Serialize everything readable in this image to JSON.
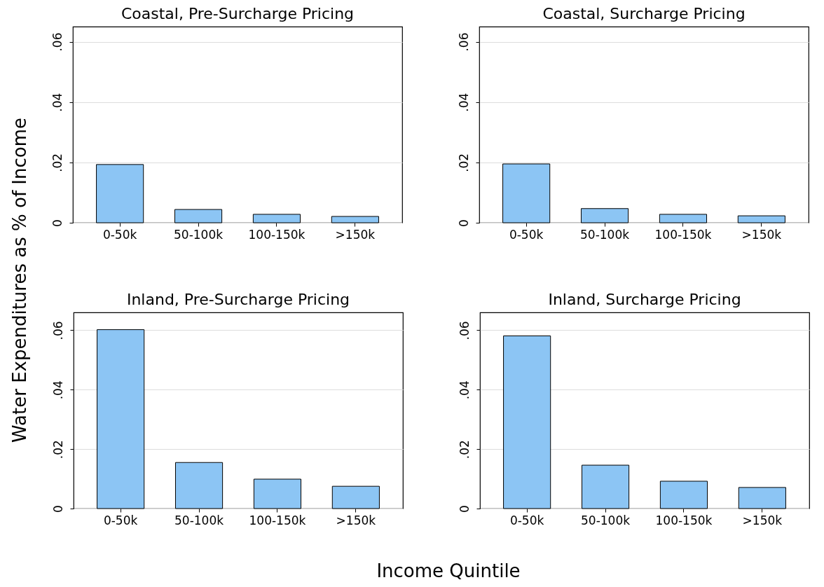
{
  "chart_data": [
    {
      "type": "bar",
      "title": "Coastal, Pre-Surcharge Pricing",
      "ylabel": "Water Expenditures as % of Income",
      "xlabel": "Income Quintile",
      "categories": [
        "0-50k",
        "50-100k",
        "100-150k",
        ">150k"
      ],
      "values": [
        0.0193,
        0.0044,
        0.0028,
        0.0021
      ],
      "color": "#8cc5f4",
      "ylim": [
        0,
        0.065
      ],
      "yticks": [
        {
          "value": 0,
          "label": "0"
        },
        {
          "value": 0.02,
          "label": ".02"
        },
        {
          "value": 0.04,
          "label": ".04"
        },
        {
          "value": 0.06,
          "label": ".06"
        }
      ],
      "grid": "y"
    },
    {
      "type": "bar",
      "title": "Coastal, Surcharge Pricing",
      "categories": [
        "0-50k",
        "50-100k",
        "100-150k",
        ">150k"
      ],
      "values": [
        0.0195,
        0.0047,
        0.0028,
        0.0023
      ],
      "color": "#8cc5f4",
      "ylim": [
        0,
        0.065
      ],
      "yticks": [
        {
          "value": 0,
          "label": "0"
        },
        {
          "value": 0.02,
          "label": ".02"
        },
        {
          "value": 0.04,
          "label": ".04"
        },
        {
          "value": 0.06,
          "label": ".06"
        }
      ],
      "grid": "y"
    },
    {
      "type": "bar",
      "title": "Inland, Pre-Surcharge Pricing",
      "categories": [
        "0-50k",
        "50-100k",
        "100-150k",
        ">150k"
      ],
      "values": [
        0.0602,
        0.0155,
        0.0099,
        0.0075
      ],
      "color": "#8cc5f4",
      "ylim": [
        0,
        0.066
      ],
      "yticks": [
        {
          "value": 0,
          "label": "0"
        },
        {
          "value": 0.02,
          "label": ".02"
        },
        {
          "value": 0.04,
          "label": ".04"
        },
        {
          "value": 0.06,
          "label": ".06"
        }
      ],
      "grid": "y"
    },
    {
      "type": "bar",
      "title": "Inland, Surcharge Pricing",
      "categories": [
        "0-50k",
        "50-100k",
        "100-150k",
        ">150k"
      ],
      "values": [
        0.0581,
        0.0146,
        0.0092,
        0.0071
      ],
      "color": "#8cc5f4",
      "ylim": [
        0,
        0.066
      ],
      "yticks": [
        {
          "value": 0,
          "label": "0"
        },
        {
          "value": 0.02,
          "label": ".02"
        },
        {
          "value": 0.04,
          "label": ".04"
        },
        {
          "value": 0.06,
          "label": ".06"
        }
      ],
      "grid": "y"
    }
  ]
}
